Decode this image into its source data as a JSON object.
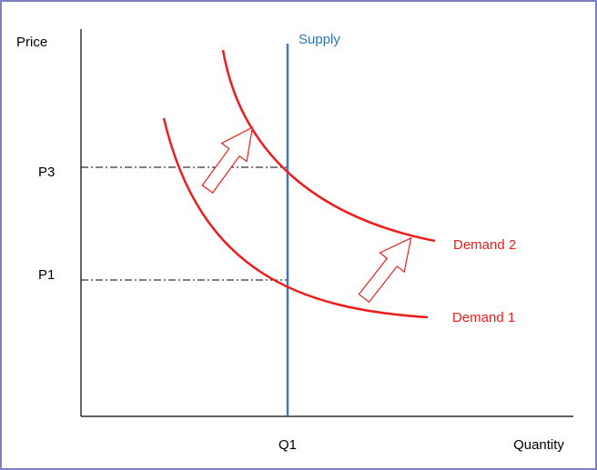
{
  "axes": {
    "y_label": "Price",
    "x_label": "Quantity"
  },
  "price_levels": [
    "P3",
    "P1"
  ],
  "quantity_levels": [
    "Q1"
  ],
  "curves": {
    "supply": "Supply",
    "demand_2": "Demand 2",
    "demand_1": "Demand 1"
  }
}
